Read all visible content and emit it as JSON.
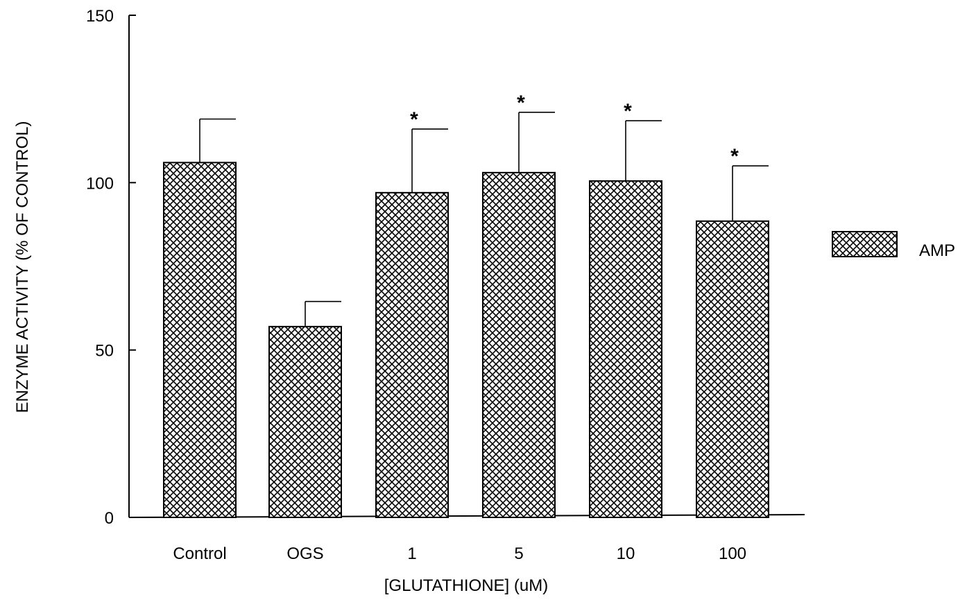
{
  "chart_data": {
    "type": "bar",
    "categories": [
      "Control",
      "OGS",
      "1",
      "5",
      "10",
      "100"
    ],
    "series": [
      {
        "name": "AMP",
        "values": [
          106,
          57,
          97,
          103,
          100.5,
          88.5
        ],
        "error": [
          13,
          7.5,
          19,
          18,
          18,
          16.5
        ],
        "significant": [
          "",
          "",
          "*",
          "*",
          "*",
          "*"
        ]
      }
    ],
    "xlabel": "[GLUTATHIONE] (uM)",
    "ylabel": "ENZYME ACTIVITY (% OF CONTROL)",
    "ylim": [
      0,
      150
    ],
    "yticks": [
      0,
      50,
      100,
      150
    ],
    "grid": false,
    "legend": "right",
    "bar_pattern": "crosshatch",
    "colors": {
      "bar_fill": "#ffffff",
      "bar_stroke": "#000000",
      "hatch": "#000000"
    }
  }
}
